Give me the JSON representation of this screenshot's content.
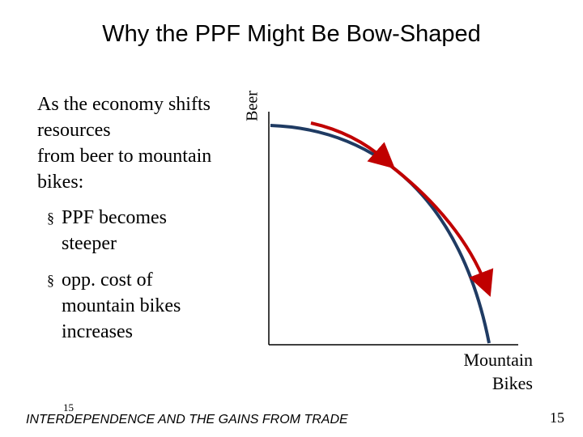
{
  "slide": {
    "title": "Why the PPF Might Be Bow-Shaped",
    "intro_lines": [
      "As the economy shifts",
      "resources",
      "from beer to mountain",
      "bikes:"
    ],
    "bullet_symbol": "§",
    "bullets": [
      {
        "lines": [
          "PPF becomes",
          "steeper"
        ]
      },
      {
        "lines": [
          "opp. cost of",
          "mountain bikes",
          "increases"
        ]
      }
    ]
  },
  "diagram": {
    "y_axis_label": "Beer",
    "x_axis_label_lines": [
      "Mountain",
      "Bikes"
    ],
    "curve_color": "#1F3B63",
    "arrow_color": "#C00000",
    "axis_color": "#000000"
  },
  "footer": {
    "small_number": "15",
    "text": "INTERDEPENDENCE AND THE GAINS FROM TRADE",
    "page_number": "15"
  }
}
